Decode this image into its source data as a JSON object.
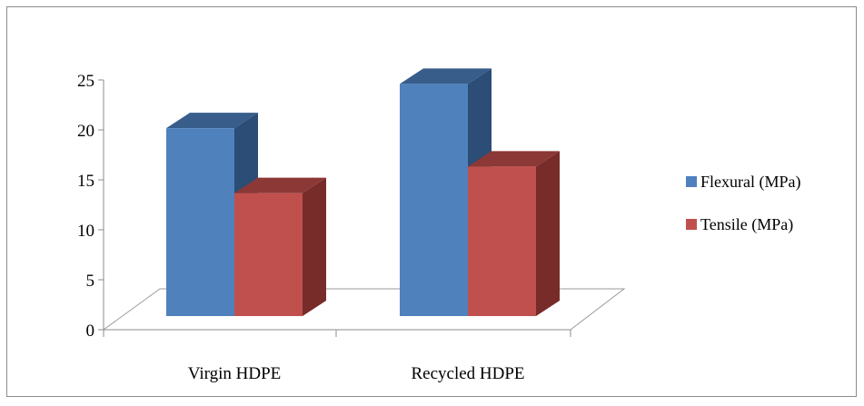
{
  "chart_data": {
    "type": "bar",
    "style": "3d-clustered-column",
    "categories": [
      "Virgin HDPE",
      "Recycled HDPE"
    ],
    "series": [
      {
        "name": "Flexural (MPa)",
        "values": [
          19.1,
          23.6
        ],
        "color": "#4f81bd",
        "side": "#2c4d75",
        "top": "#385d8a"
      },
      {
        "name": "Tensile (MPa)",
        "values": [
          12.5,
          15.2
        ],
        "color": "#c0504d",
        "side": "#772c2a",
        "top": "#8c3836"
      }
    ],
    "yticks": [
      0,
      5,
      10,
      15,
      20,
      25
    ],
    "ylim": [
      0,
      25
    ],
    "legend_position": "right",
    "title": "",
    "xlabel": "",
    "ylabel": ""
  }
}
